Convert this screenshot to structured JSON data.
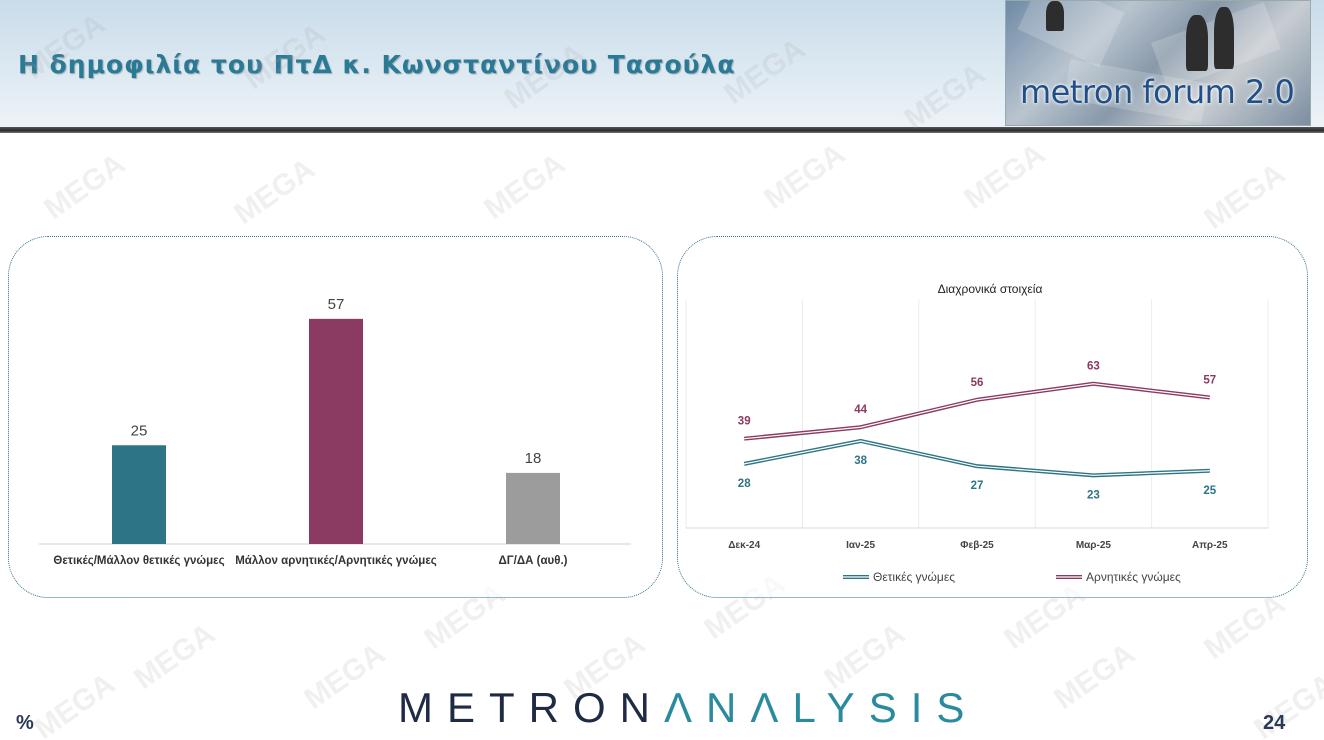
{
  "header": {
    "title": "Η δημοφιλία του ΠτΔ κ. Κωνσταντίνου Τασούλα",
    "logo_text": "metron forum 2.0"
  },
  "watermark": "MEGA",
  "footer": {
    "brand_part1": "METRON",
    "brand_part2": "ΛNΛLYSIS",
    "percent_symbol": "%",
    "page_number": "24"
  },
  "colors": {
    "title": "#2a7a96",
    "positive": "#2e7487",
    "negative": "#8b3a62",
    "neutral": "#9c9c9c"
  },
  "chart_data": [
    {
      "type": "bar",
      "title": "",
      "categories": [
        "Θετικές/Μάλλον θετικές γνώμες",
        "Μάλλον αρνητικές/Αρνητικές γνώμες",
        "ΔΓ/ΔΑ (αυθ.)"
      ],
      "values": [
        25,
        57,
        18
      ],
      "colors": [
        "#2e7487",
        "#8b3a62",
        "#9c9c9c"
      ],
      "ylim": [
        0,
        60
      ],
      "grid": false,
      "legend": "none"
    },
    {
      "type": "line",
      "title": "Διαχρονικά στοιχεία",
      "categories": [
        "Δεκ-24",
        "Ιαν-25",
        "Φεβ-25",
        "Μαρ-25",
        "Απρ-25"
      ],
      "series": [
        {
          "name": "Θετικές γνώμες",
          "values": [
            28,
            38,
            27,
            23,
            25
          ],
          "color": "#2e7487"
        },
        {
          "name": "Αρνητικές γνώμες",
          "values": [
            39,
            44,
            56,
            63,
            57
          ],
          "color": "#8b3a62"
        }
      ],
      "ylim": [
        0,
        100
      ],
      "grid": true,
      "legend": "bottom"
    }
  ]
}
